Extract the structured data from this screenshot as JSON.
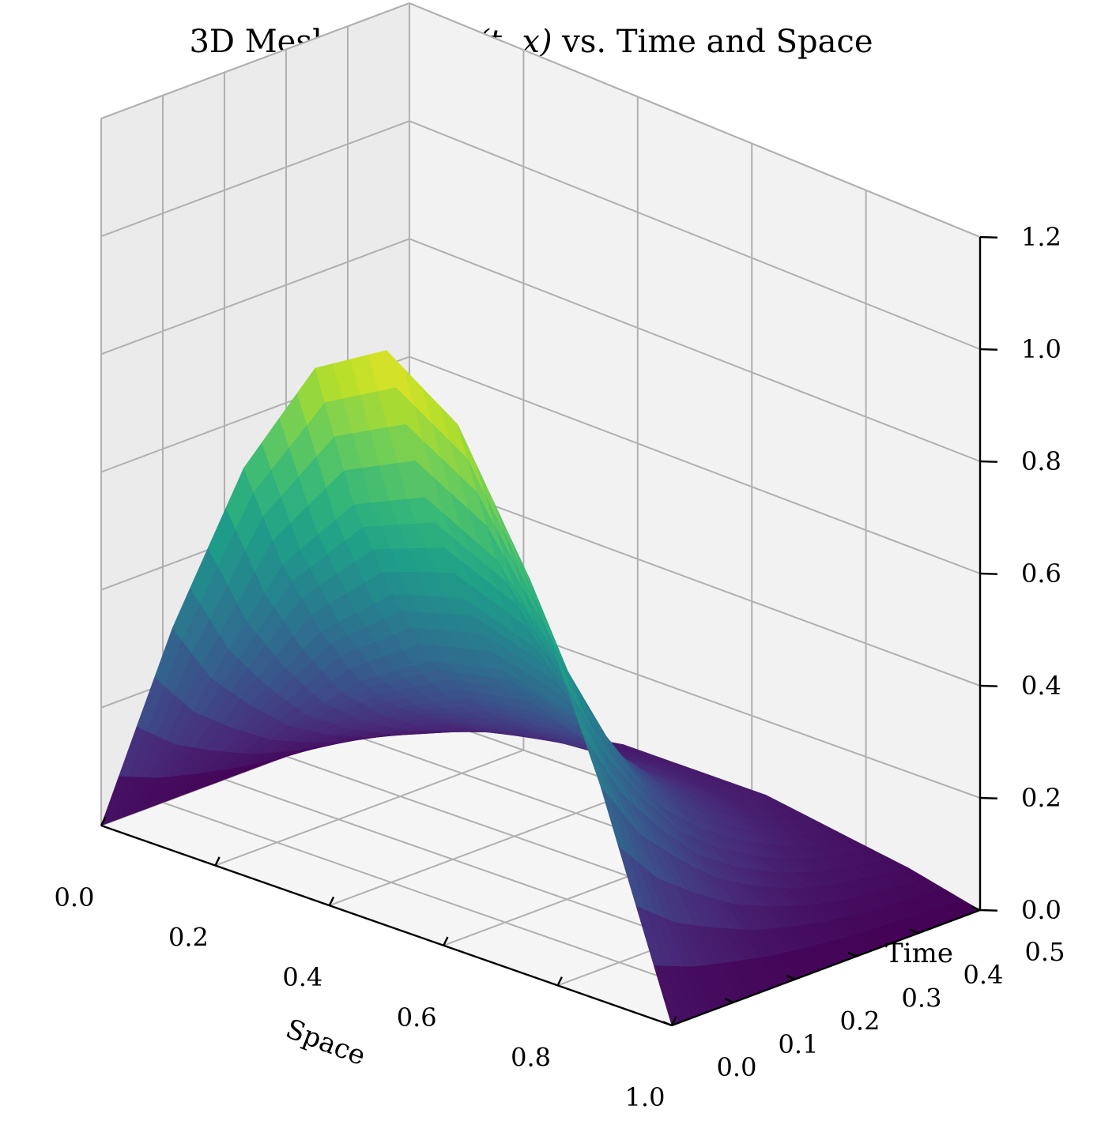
{
  "chart_data": {
    "type": "surface",
    "title_prefix": "3D Mesh Plot of ",
    "title_math": "u(t, x)",
    "title_suffix": " vs. Time and Space",
    "xlabel": "Space",
    "ylabel": "Time",
    "zlabel": "",
    "xlim": [
      0.0,
      1.0
    ],
    "ylim": [
      0.0,
      0.5
    ],
    "zlim": [
      0.0,
      1.2
    ],
    "x_ticks": [
      "0.0",
      "0.2",
      "0.4",
      "0.6",
      "0.8",
      "1.0"
    ],
    "y_ticks": [
      "0.0",
      "0.1",
      "0.2",
      "0.3",
      "0.4",
      "0.5"
    ],
    "z_ticks": [
      "0.0",
      "0.2",
      "0.4",
      "0.6",
      "0.8",
      "1.0",
      "1.2"
    ],
    "colormap": "viridis",
    "pane_colors": [
      "#f2f2f2",
      "#ebebeb",
      "#f5f5f5"
    ],
    "surface": {
      "x": [
        0.0,
        0.125,
        0.25,
        0.375,
        0.5,
        0.625,
        0.75,
        0.875,
        1.0
      ],
      "t": [
        0.0,
        0.0625,
        0.125,
        0.1875,
        0.25,
        0.3125,
        0.375,
        0.4375,
        0.5
      ],
      "u": [
        [
          0.0,
          0.38,
          0.7,
          0.92,
          1.0,
          0.92,
          0.7,
          0.38,
          0.0
        ],
        [
          0.0,
          0.27,
          0.51,
          0.66,
          0.72,
          0.66,
          0.51,
          0.27,
          0.0
        ],
        [
          0.0,
          0.2,
          0.37,
          0.48,
          0.52,
          0.48,
          0.37,
          0.2,
          0.0
        ],
        [
          0.0,
          0.14,
          0.26,
          0.34,
          0.37,
          0.34,
          0.26,
          0.14,
          0.0
        ],
        [
          0.0,
          0.1,
          0.19,
          0.25,
          0.27,
          0.25,
          0.19,
          0.1,
          0.0
        ],
        [
          0.0,
          0.07,
          0.14,
          0.18,
          0.2,
          0.18,
          0.14,
          0.07,
          0.0
        ],
        [
          0.0,
          0.05,
          0.1,
          0.13,
          0.14,
          0.13,
          0.1,
          0.05,
          0.0
        ],
        [
          0.0,
          0.04,
          0.07,
          0.09,
          0.1,
          0.09,
          0.07,
          0.04,
          0.0
        ],
        [
          0.0,
          0.03,
          0.05,
          0.07,
          0.07,
          0.07,
          0.05,
          0.03,
          0.0
        ]
      ]
    }
  }
}
